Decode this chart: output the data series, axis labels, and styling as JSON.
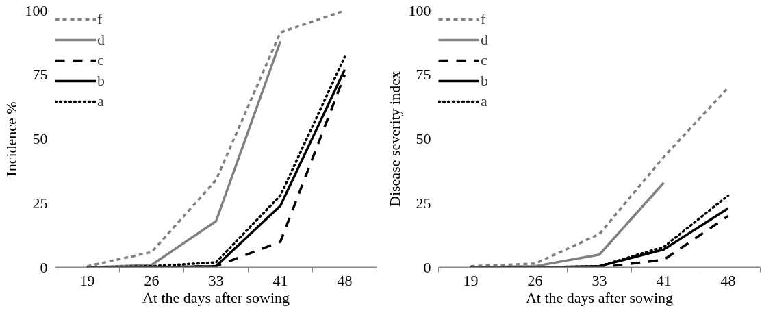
{
  "chart_data": [
    {
      "type": "line",
      "ylabel": "Incidence %",
      "xlabel": "At the days after sowing",
      "categories": [
        "19",
        "26",
        "33",
        "41",
        "48"
      ],
      "ylim": [
        0,
        100
      ],
      "yticks": [
        0,
        25,
        50,
        75,
        100
      ],
      "grid": false,
      "legend": "top left",
      "series": [
        {
          "name": "f",
          "color": "#808080",
          "line_style": "dashed",
          "values": [
            0.5,
            6,
            34,
            91.5,
            100
          ]
        },
        {
          "name": "d",
          "color": "#808080",
          "line_style": "solid",
          "values": [
            0,
            1,
            18,
            88,
            null
          ]
        },
        {
          "name": "c",
          "color": "#000000",
          "line_style": "longdash",
          "values": [
            0,
            0,
            0.5,
            10,
            75
          ]
        },
        {
          "name": "b",
          "color": "#000000",
          "line_style": "solid",
          "values": [
            0,
            0,
            0.5,
            24,
            77
          ]
        },
        {
          "name": "a",
          "color": "#000000",
          "line_style": "dotted",
          "values": [
            0,
            0.5,
            2,
            28,
            82
          ]
        }
      ]
    },
    {
      "type": "line",
      "ylabel": "Disease severity index",
      "xlabel": "At the days after sowing",
      "categories": [
        "19",
        "26",
        "33",
        "41",
        "48"
      ],
      "ylim": [
        0,
        100
      ],
      "yticks": [
        0,
        25,
        50,
        75,
        100
      ],
      "grid": false,
      "legend": "top left",
      "series": [
        {
          "name": "f",
          "color": "#808080",
          "line_style": "dashed",
          "values": [
            0.5,
            1.5,
            13,
            43,
            70
          ]
        },
        {
          "name": "d",
          "color": "#808080",
          "line_style": "solid",
          "values": [
            0,
            0.5,
            5,
            33,
            null
          ]
        },
        {
          "name": "c",
          "color": "#000000",
          "line_style": "longdash",
          "values": [
            0,
            0,
            0,
            3,
            20
          ]
        },
        {
          "name": "b",
          "color": "#000000",
          "line_style": "solid",
          "values": [
            0,
            0,
            0.5,
            7,
            23
          ]
        },
        {
          "name": "a",
          "color": "#000000",
          "line_style": "dotted",
          "values": [
            0,
            0,
            0.5,
            8,
            28
          ]
        }
      ]
    }
  ]
}
